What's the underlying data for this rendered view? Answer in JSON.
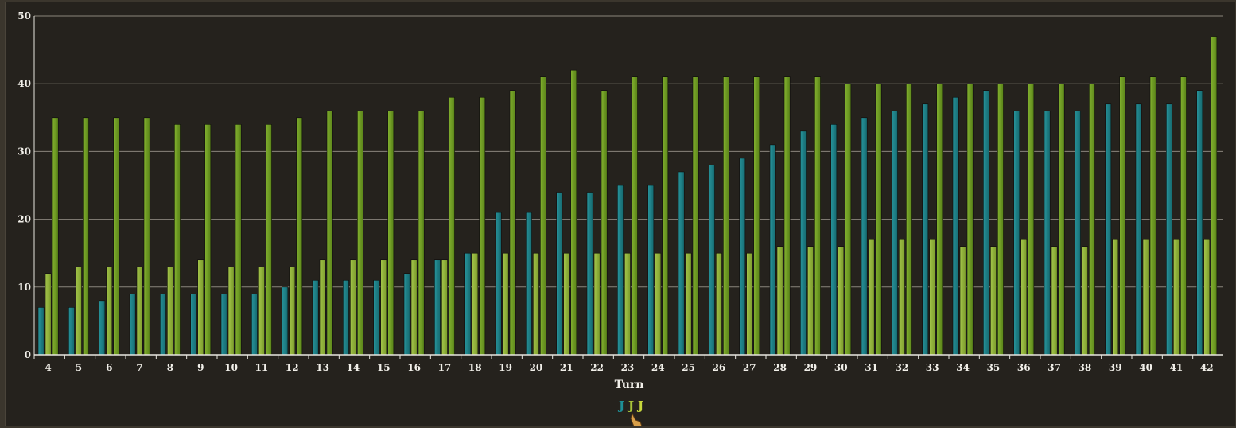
{
  "chart_data": {
    "type": "bar",
    "xlabel": "Turn",
    "ylabel": "",
    "ylim": [
      0,
      50
    ],
    "yticks": [
      0,
      10,
      20,
      30,
      40,
      50
    ],
    "grid": true,
    "categories": [
      "4",
      "5",
      "6",
      "7",
      "8",
      "9",
      "10",
      "11",
      "12",
      "13",
      "14",
      "15",
      "16",
      "17",
      "18",
      "19",
      "20",
      "21",
      "22",
      "23",
      "24",
      "25",
      "26",
      "27",
      "28",
      "29",
      "30",
      "31",
      "32",
      "33",
      "34",
      "35",
      "36",
      "37",
      "38",
      "39",
      "40",
      "41",
      "42"
    ],
    "series": [
      {
        "color": "#1e7f86",
        "values": [
          7,
          7,
          8,
          9,
          9,
          9,
          9,
          9,
          10,
          11,
          11,
          11,
          12,
          14,
          15,
          21,
          21,
          24,
          24,
          25,
          25,
          27,
          28,
          29,
          31,
          33,
          34,
          35,
          36,
          37,
          38,
          39,
          36,
          36,
          36,
          37,
          37,
          37,
          39
        ]
      },
      {
        "color": "#8fb13a",
        "values": [
          12,
          13,
          13,
          13,
          13,
          14,
          13,
          13,
          13,
          14,
          14,
          14,
          14,
          14,
          15,
          15,
          15,
          15,
          15,
          15,
          15,
          15,
          15,
          15,
          16,
          16,
          16,
          17,
          17,
          17,
          16,
          16,
          17,
          16,
          16,
          17,
          17,
          17,
          17
        ]
      },
      {
        "color": "#6d9a22",
        "values": [
          35,
          35,
          35,
          35,
          34,
          34,
          34,
          34,
          35,
          36,
          36,
          36,
          36,
          38,
          38,
          39,
          41,
          42,
          39,
          41,
          41,
          41,
          41,
          41,
          41,
          41,
          40,
          40,
          40,
          40,
          40,
          40,
          40,
          40,
          40,
          41,
          41,
          41,
          47
        ]
      }
    ],
    "legend": {
      "placement": "bottom-center",
      "markers": [
        {
          "glyph": "J",
          "color": "#1e8f96"
        },
        {
          "glyph": "J",
          "color": "#a8c43a"
        },
        {
          "glyph": "J",
          "color": "#c8d83c"
        }
      ]
    }
  }
}
